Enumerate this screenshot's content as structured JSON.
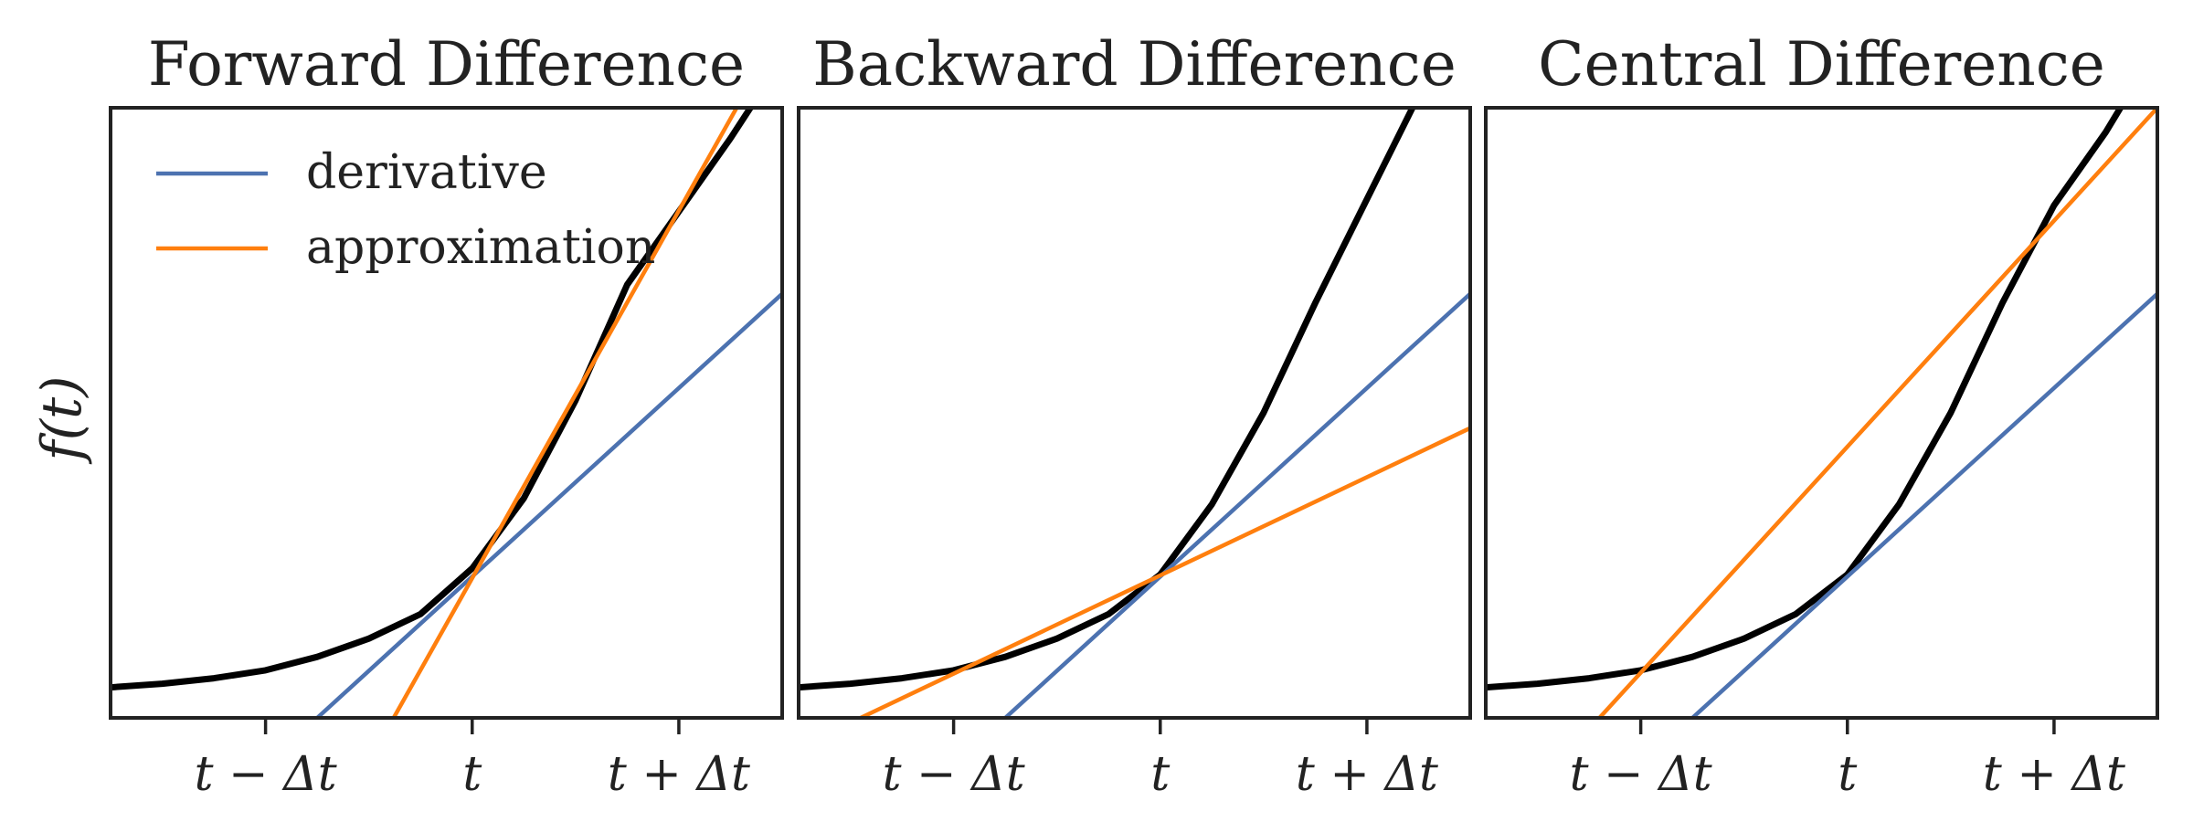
{
  "figure": {
    "ylabel": "f(t)",
    "legend": {
      "placement": "upper-left",
      "panel": 0,
      "entries": [
        {
          "label": "derivative",
          "color": "#4c72b0"
        },
        {
          "label": "approximation",
          "color": "#ff7f0e"
        }
      ]
    }
  },
  "chart_data": [
    {
      "type": "line",
      "title": "Forward Difference",
      "xlabel": "",
      "ylabel": "f(t)",
      "x_ticks": [
        -1,
        0,
        1
      ],
      "tick_labels": [
        "t − Δt",
        "t",
        "t + Δt"
      ],
      "xlim": [
        -1.75,
        1.5
      ],
      "ylim": [
        0,
        1
      ],
      "series": [
        {
          "role": "function",
          "color": "#000000",
          "x": [
            -1.75,
            -1.5,
            -1.25,
            -1,
            -0.75,
            -0.5,
            -0.25,
            0,
            0.25,
            0.5,
            0.75,
            1,
            1.25,
            1.5
          ],
          "y": [
            0.05,
            0.056,
            0.065,
            0.078,
            0.1,
            0.13,
            0.17,
            0.245,
            0.36,
            0.52,
            0.71,
            0.83,
            0.95,
            1.08
          ]
        },
        {
          "name": "derivative",
          "color": "#4c72b0",
          "x": [
            -0.75,
            1.5
          ],
          "y": [
            0,
            0.695
          ]
        },
        {
          "name": "approximation",
          "color": "#ff7f0e",
          "x": [
            -0.38,
            1.28
          ],
          "y": [
            0,
            1.0
          ]
        }
      ]
    },
    {
      "type": "line",
      "title": "Backward Difference",
      "xlabel": "",
      "ylabel": "",
      "x_ticks": [
        -1,
        0,
        1
      ],
      "tick_labels": [
        "t − Δt",
        "t",
        "t + Δt"
      ],
      "xlim": [
        -1.75,
        1.5
      ],
      "ylim": [
        0,
        1
      ],
      "series": [
        {
          "role": "function",
          "color": "#000000",
          "x": [
            -1.75,
            -1.5,
            -1.25,
            -1,
            -0.75,
            -0.5,
            -0.25,
            0,
            0.25,
            0.5,
            0.75,
            1,
            1.25,
            1.5
          ],
          "y": [
            0.05,
            0.056,
            0.065,
            0.078,
            0.1,
            0.13,
            0.17,
            0.235,
            0.35,
            0.5,
            0.68,
            0.85,
            1.02,
            1.2
          ]
        },
        {
          "name": "derivative",
          "color": "#4c72b0",
          "x": [
            -0.75,
            1.5
          ],
          "y": [
            0,
            0.695
          ]
        },
        {
          "name": "approximation",
          "color": "#ff7f0e",
          "x": [
            -1.45,
            1.5
          ],
          "y": [
            0,
            0.475
          ]
        }
      ]
    },
    {
      "type": "line",
      "title": "Central Difference",
      "xlabel": "",
      "ylabel": "",
      "x_ticks": [
        -1,
        0,
        1
      ],
      "tick_labels": [
        "t − Δt",
        "t",
        "t + Δt"
      ],
      "xlim": [
        -1.75,
        1.5
      ],
      "ylim": [
        0,
        1
      ],
      "series": [
        {
          "role": "function",
          "color": "#000000",
          "x": [
            -1.75,
            -1.5,
            -1.25,
            -1,
            -0.75,
            -0.5,
            -0.25,
            0,
            0.25,
            0.5,
            0.75,
            1,
            1.25,
            1.5
          ],
          "y": [
            0.05,
            0.056,
            0.065,
            0.078,
            0.1,
            0.13,
            0.17,
            0.235,
            0.35,
            0.5,
            0.68,
            0.84,
            0.96,
            1.1
          ]
        },
        {
          "name": "derivative",
          "color": "#4c72b0",
          "x": [
            -0.75,
            1.5
          ],
          "y": [
            0,
            0.695
          ]
        },
        {
          "name": "approximation",
          "color": "#ff7f0e",
          "x": [
            -1.2,
            1.5
          ],
          "y": [
            0,
            1.0
          ]
        }
      ]
    }
  ]
}
